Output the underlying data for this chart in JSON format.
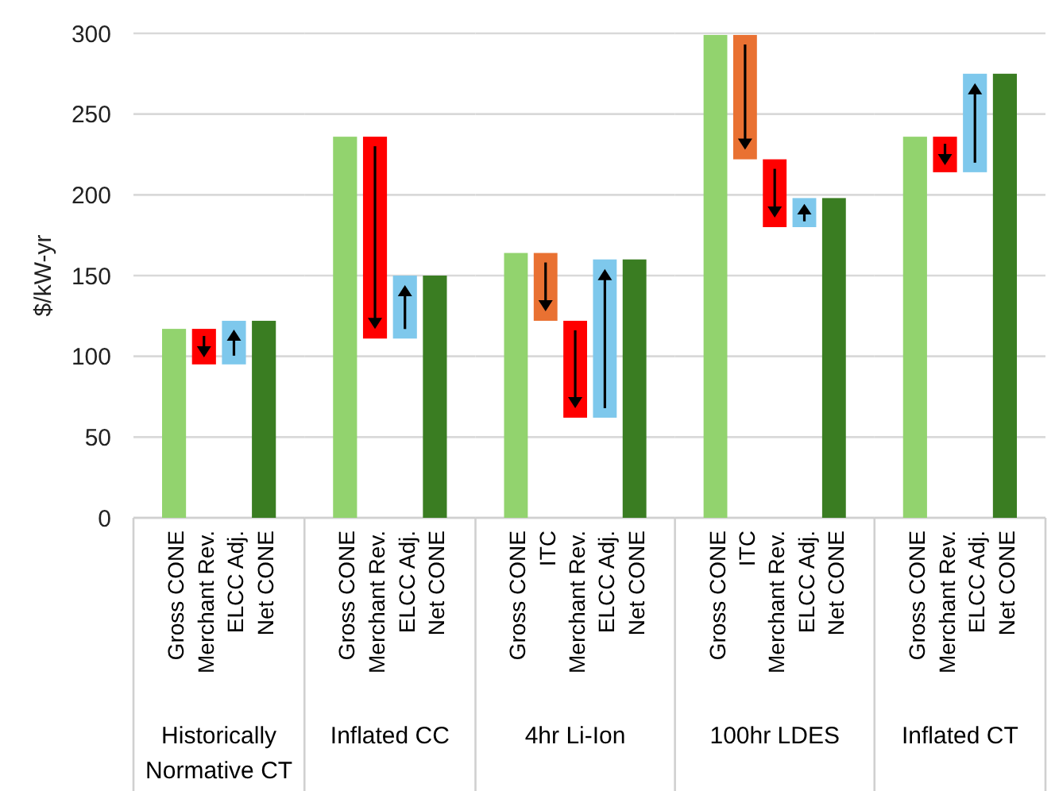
{
  "chart_data": [
    {
      "type": "bar",
      "categories": [
        "Gross CONE",
        "Merchant Rev.",
        "ELCC Adj.",
        "Net CONE"
      ],
      "values": [
        117,
        -22,
        27,
        122
      ],
      "base": [
        0,
        117,
        95,
        0
      ],
      "colors": [
        "#92d36e",
        "#ff0000",
        "#7ec8ec",
        "#3a7d22"
      ],
      "xlabel": "Historically Normative CT",
      "ylabel": "$/kW-yr",
      "ylim": [
        0,
        300
      ],
      "yticks": [
        0,
        50,
        100,
        150,
        200,
        250,
        300
      ],
      "grid": "y"
    },
    {
      "type": "bar",
      "categories": [
        "Gross CONE",
        "Merchant Rev.",
        "ELCC Adj.",
        "Net CONE"
      ],
      "values": [
        236,
        -125,
        39,
        150
      ],
      "base": [
        0,
        236,
        111,
        0
      ],
      "colors": [
        "#92d36e",
        "#ff0000",
        "#7ec8ec",
        "#3a7d22"
      ],
      "xlabel": "Inflated CC",
      "ylim": [
        0,
        300
      ],
      "yticks": [
        0,
        50,
        100,
        150,
        200,
        250,
        300
      ],
      "grid": "y",
      "tick_labels": "x"
    },
    {
      "type": "bar",
      "categories": [
        "Gross CONE",
        "ITC",
        "Merchant Rev.",
        "ELCC Adj.",
        "Net CONE"
      ],
      "values": [
        164,
        -42,
        -60,
        98,
        160
      ],
      "base": [
        0,
        164,
        122,
        62,
        0
      ],
      "colors": [
        "#92d36e",
        "#e97132",
        "#ff0000",
        "#7ec8ec",
        "#3a7d22"
      ],
      "xlabel": "4hr Li-Ion",
      "ylim": [
        0,
        300
      ],
      "yticks": [
        0,
        50,
        100,
        150,
        200,
        250,
        300
      ],
      "grid": "y",
      "tick_labels": "x"
    },
    {
      "type": "bar",
      "categories": [
        "Gross CONE",
        "ITC",
        "Merchant Rev.",
        "ELCC Adj.",
        "Net CONE"
      ],
      "values": [
        299,
        -77,
        -42,
        18,
        198
      ],
      "base": [
        0,
        299,
        222,
        180,
        0
      ],
      "colors": [
        "#92d36e",
        "#e97132",
        "#ff0000",
        "#7ec8ec",
        "#3a7d22"
      ],
      "xlabel": "100hr LDES",
      "ylim": [
        0,
        300
      ],
      "yticks": [
        0,
        50,
        100,
        150,
        200,
        250,
        300
      ],
      "grid": "y",
      "tick_labels": "x"
    },
    {
      "type": "bar",
      "categories": [
        "Gross CONE",
        "Merchant Rev.",
        "ELCC Adj.",
        "Net CONE"
      ],
      "values": [
        236,
        -22,
        61,
        275
      ],
      "base": [
        0,
        236,
        214,
        0
      ],
      "colors": [
        "#92d36e",
        "#ff0000",
        "#7ec8ec",
        "#3a7d22"
      ],
      "xlabel": "Inflated CT",
      "ylim": [
        0,
        300
      ],
      "yticks": [
        0,
        50,
        100,
        150,
        200,
        250,
        300
      ],
      "grid": "y",
      "tick_labels": "x"
    }
  ]
}
